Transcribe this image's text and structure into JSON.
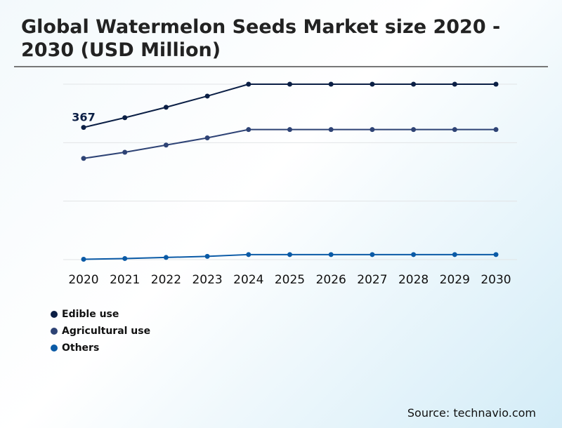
{
  "chart_data": {
    "type": "line",
    "title": "Global Watermelon Seeds Market size 2020 - 2030 (USD Million)",
    "xlabel": "",
    "ylabel": "",
    "x": [
      "2020",
      "2021",
      "2022",
      "2023",
      "2024",
      "2025",
      "2026",
      "2027",
      "2028",
      "2029",
      "2030"
    ],
    "ylim": [
      0,
      487
    ],
    "grid": true,
    "legend_position": "bottom-left",
    "series": [
      {
        "name": "Edible use",
        "color": "#0b1f45",
        "values": [
          367,
          394,
          423,
          454,
          487,
          487,
          487,
          487,
          487,
          487,
          487
        ]
      },
      {
        "name": "Agricultural use",
        "color": "#2e4375",
        "values": [
          281,
          298,
          318,
          338,
          361,
          361,
          361,
          361,
          361,
          361,
          361
        ]
      },
      {
        "name": "Others",
        "color": "#0a5aa6",
        "values": [
          1,
          3,
          6,
          9,
          14,
          14,
          14,
          14,
          14,
          14,
          14
        ]
      }
    ],
    "annotations": [
      {
        "series": "Edible use",
        "x": "2020",
        "text": "367"
      }
    ]
  },
  "source": "Source: technavio.com"
}
